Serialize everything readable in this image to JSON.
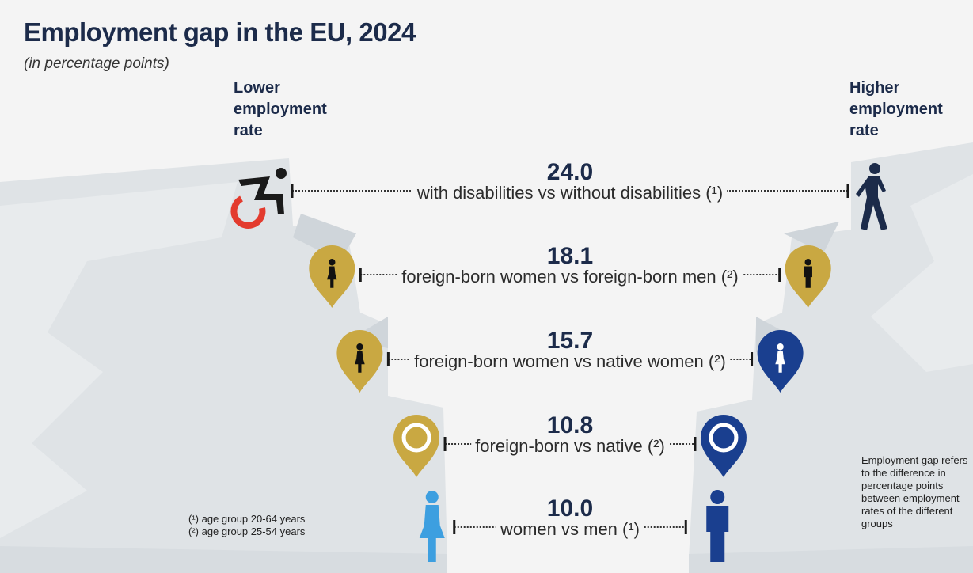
{
  "title": "Employment gap in the EU, 2024",
  "subtitle": "(in percentage points)",
  "left_label": "Lower employment rate",
  "right_label": "Higher employment rate",
  "footnotes": [
    "(¹) age group 20-64 years",
    "(²) age group 25-54 years"
  ],
  "definition": "Employment gap refers to the difference in percentage points between employment rates of the different groups",
  "colors": {
    "gold": "#c9a842",
    "dark_blue": "#1a3f8f",
    "light_blue": "#3d9fe0",
    "red": "#e33b2e",
    "navy": "#1c2b4a",
    "text": "#2b2b2b"
  },
  "chart_data": {
    "type": "bar",
    "unit": "percentage points",
    "categories": [
      "with disabilities vs without disabilities (¹)",
      "foreign-born women vs foreign-born men (²)",
      "foreign-born women vs native women (²)",
      "foreign-born vs native (²)",
      "women vs men (¹)"
    ],
    "values": [
      24.0,
      18.1,
      15.7,
      10.8,
      10.0
    ],
    "value_labels": [
      "24.0",
      "18.1",
      "15.7",
      "10.8",
      "10.0"
    ],
    "left_icons": [
      "wheelchair-icon",
      "woman-pin-icon",
      "woman-pin-icon",
      "circle-pin-icon",
      "woman-icon"
    ],
    "right_icons": [
      "walking-person-icon",
      "man-pin-icon",
      "woman-pin-icon",
      "circle-pin-icon",
      "man-icon"
    ],
    "left_colors": [
      "#e33b2e",
      "#c9a842",
      "#c9a842",
      "#c9a842",
      "#3d9fe0"
    ],
    "right_colors": [
      "#1c2b4a",
      "#c9a842",
      "#1a3f8f",
      "#1a3f8f",
      "#1a3f8f"
    ]
  }
}
